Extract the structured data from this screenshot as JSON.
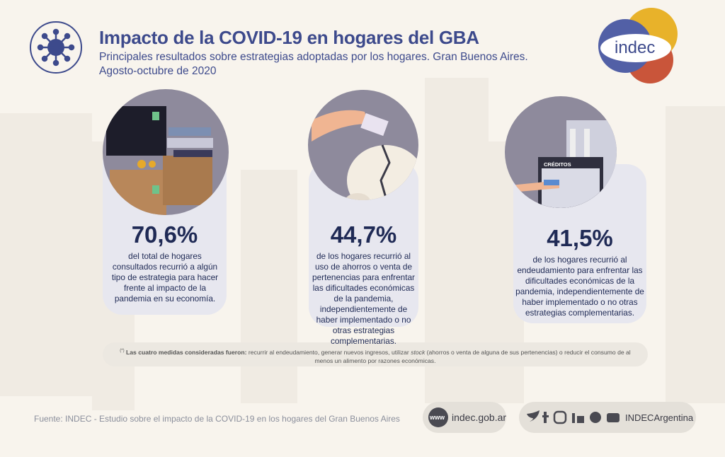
{
  "header": {
    "title": "Impacto de la COVID-19 en hogares del GBA",
    "subtitle_lines": [
      "Principales resultados sobre estrategias adoptadas por los hogares. Gran Buenos Aires.",
      "Agosto-octubre de 2020"
    ]
  },
  "logo": {
    "text": "indec"
  },
  "cards": [
    {
      "value": "70,6%",
      "description": "del total de hogares consultados recurrió a algún tipo de estrategia para hacer frente al impacto de la pandemia en su economía."
    },
    {
      "value": "44,7%",
      "description": "de los hogares recurrió al uso de ahorros o venta de pertenencias para enfrentar las dificultades económicas de la pandemia, independientemente de haber implementado o no otras estrategias complementarias."
    },
    {
      "value": "41,5%",
      "description": "de los hogares recurrió al endeudamiento para enfrentar las dificultades económicas de la pandemia, independientemente de haber implementado o no otras estrategias complementarias.",
      "image_label": "CRÉDITOS"
    }
  ],
  "footnote": {
    "marker": "(*)",
    "lead": "Las cuatro medidas consideradas fueron:",
    "before": "recurrir al endeudamiento, generar nuevos ingresos, utilizar",
    "italic": "stock",
    "after": "(ahorros o venta de alguna de sus pertenencias) o reducir el consumo de al menos un alimento por razones económicas."
  },
  "footer": {
    "source": "Fuente:  INDEC - Estudio sobre el impacto de la COVID-19 en los hogares del Gran Buenos Aires",
    "www_icon": "www",
    "website": "indec.gob.ar",
    "social_handle": "INDECArgentina"
  }
}
